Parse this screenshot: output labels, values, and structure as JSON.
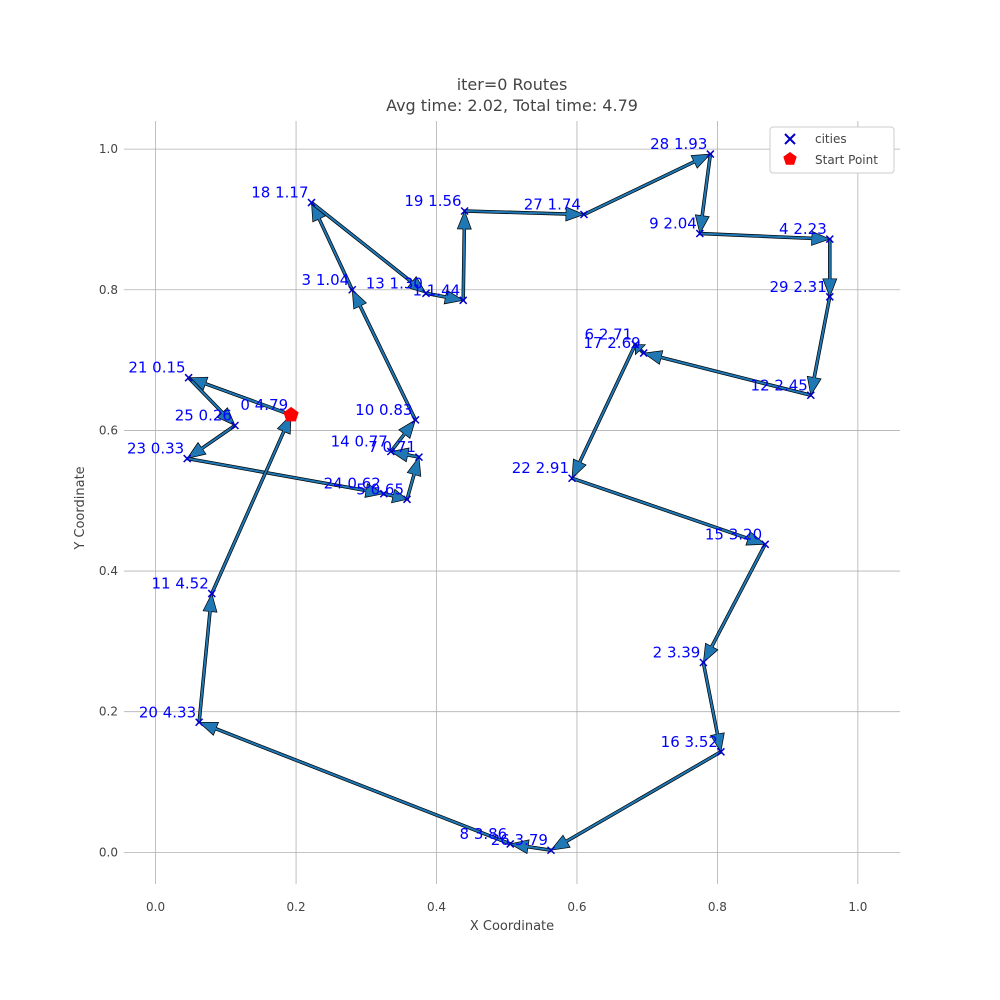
{
  "chart_data": {
    "type": "scatter",
    "title": "iter=0 Routes",
    "subtitle": "Avg time: 2.02, Total time: 4.79",
    "xlabel": "X Coordinate",
    "ylabel": "Y Coordinate",
    "xlim": [
      -0.045,
      1.06
    ],
    "ylim": [
      -0.045,
      1.04
    ],
    "x_ticks": [
      "0.0",
      "0.2",
      "0.4",
      "0.6",
      "0.8",
      "1.0"
    ],
    "y_ticks": [
      "0.0",
      "0.2",
      "0.4",
      "0.6",
      "0.8",
      "1.0"
    ],
    "grid": true,
    "legend": {
      "placement": "top-right",
      "entries": [
        {
          "label": "cities",
          "marker": "x",
          "color": "#0000cc"
        },
        {
          "label": "Start Point",
          "marker": "pentagon",
          "color": "#ff0000"
        }
      ]
    },
    "start_point": {
      "x": 0.193,
      "y": 0.622
    },
    "cities": [
      {
        "label": "0 4.79",
        "x": 0.193,
        "y": 0.622
      },
      {
        "label": "21 0.15",
        "x": 0.047,
        "y": 0.675
      },
      {
        "label": "25 0.26",
        "x": 0.113,
        "y": 0.607
      },
      {
        "label": "23 0.33",
        "x": 0.045,
        "y": 0.56
      },
      {
        "label": "24 0.62",
        "x": 0.325,
        "y": 0.51
      },
      {
        "label": "5 0.65",
        "x": 0.358,
        "y": 0.502
      },
      {
        "label": "7 0.71",
        "x": 0.375,
        "y": 0.562
      },
      {
        "label": "14 0.77",
        "x": 0.335,
        "y": 0.57
      },
      {
        "label": "10 0.83",
        "x": 0.37,
        "y": 0.615
      },
      {
        "label": "3 1.04",
        "x": 0.28,
        "y": 0.8
      },
      {
        "label": "18 1.17",
        "x": 0.222,
        "y": 0.924
      },
      {
        "label": "13 1.30",
        "x": 0.385,
        "y": 0.795
      },
      {
        "label": "1 1.44",
        "x": 0.438,
        "y": 0.785
      },
      {
        "label": "19 1.56",
        "x": 0.44,
        "y": 0.912
      },
      {
        "label": "27 1.74",
        "x": 0.61,
        "y": 0.907
      },
      {
        "label": "28 1.93",
        "x": 0.79,
        "y": 0.993
      },
      {
        "label": "9 2.04",
        "x": 0.775,
        "y": 0.88
      },
      {
        "label": "4 2.23",
        "x": 0.96,
        "y": 0.872
      },
      {
        "label": "29 2.31",
        "x": 0.96,
        "y": 0.79
      },
      {
        "label": "12 2.45",
        "x": 0.933,
        "y": 0.65
      },
      {
        "label": "17 2.69",
        "x": 0.695,
        "y": 0.71
      },
      {
        "label": "6 2.71",
        "x": 0.683,
        "y": 0.722
      },
      {
        "label": "22 2.91",
        "x": 0.593,
        "y": 0.532
      },
      {
        "label": "15 3.20",
        "x": 0.868,
        "y": 0.438
      },
      {
        "label": "2 3.39",
        "x": 0.78,
        "y": 0.27
      },
      {
        "label": "16 3.52",
        "x": 0.805,
        "y": 0.143
      },
      {
        "label": "26 3.79",
        "x": 0.563,
        "y": 0.003
      },
      {
        "label": "8 3.86",
        "x": 0.505,
        "y": 0.012
      },
      {
        "label": "20 4.33",
        "x": 0.062,
        "y": 0.185
      },
      {
        "label": "11 4.52",
        "x": 0.08,
        "y": 0.368
      }
    ]
  }
}
